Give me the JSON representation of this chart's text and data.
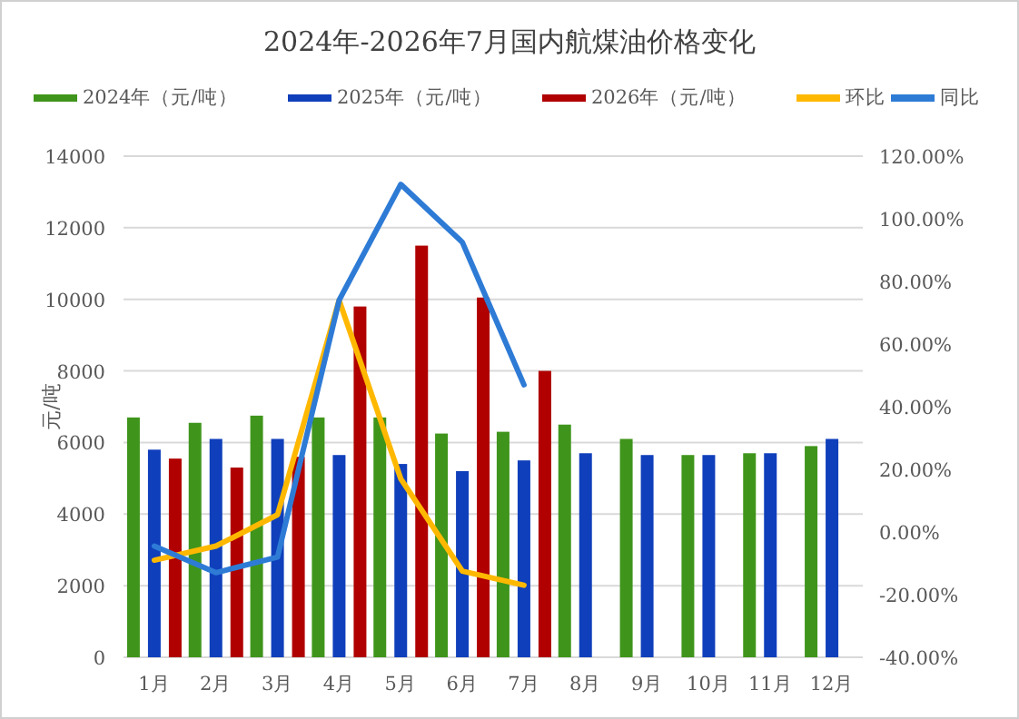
{
  "chart_data": {
    "type": "bar",
    "title": "2024年-2026年7月国内航煤油价格变化",
    "ylabel": "元/吨",
    "categories": [
      "1月",
      "2月",
      "3月",
      "4月",
      "5月",
      "6月",
      "7月",
      "8月",
      "9月",
      "10月",
      "11月",
      "12月"
    ],
    "series": [
      {
        "name": "2024年（元/吨）",
        "color": "#3f951b",
        "values": [
          6700,
          6550,
          6750,
          6700,
          6700,
          6250,
          6300,
          6500,
          6100,
          5650,
          5700,
          5900
        ]
      },
      {
        "name": "2025年（元/吨）",
        "color": "#0f3fbb",
        "values": [
          5800,
          6100,
          6100,
          5650,
          5400,
          5200,
          5500,
          5700,
          5650,
          5650,
          5700,
          6100
        ]
      },
      {
        "name": "2026年（元/吨）",
        "color": "#b00000",
        "values": [
          5550,
          5300,
          5600,
          9800,
          11500,
          10050,
          8000,
          null,
          null,
          null,
          null,
          null
        ]
      },
      {
        "name": "环比",
        "type": "line",
        "axis": "y2",
        "color": "#ffb800",
        "values": [
          -9,
          -4.5,
          5.5,
          74,
          17,
          -12.5,
          -17,
          null,
          null,
          null,
          null,
          null
        ]
      },
      {
        "name": "同比",
        "type": "line",
        "axis": "y2",
        "color": "#2e7bd6",
        "values": [
          -4.5,
          -13,
          -8,
          74,
          111,
          92.5,
          47,
          null,
          null,
          null,
          null,
          null
        ]
      }
    ],
    "ylim": [
      0,
      14000
    ],
    "yticks": [
      0,
      2000,
      4000,
      6000,
      8000,
      10000,
      12000,
      14000
    ],
    "y2lim": [
      -40,
      120
    ],
    "y2ticks": [
      {
        "value": -40,
        "label": "-40.00%"
      },
      {
        "value": -20,
        "label": "-20.00%"
      },
      {
        "value": 0,
        "label": "0.00%"
      },
      {
        "value": 20,
        "label": "20.00%"
      },
      {
        "value": 40,
        "label": "40.00%"
      },
      {
        "value": 60,
        "label": "60.00%"
      },
      {
        "value": 80,
        "label": "80.00%"
      },
      {
        "value": 100,
        "label": "100.00%"
      },
      {
        "value": 120,
        "label": "120.00%"
      }
    ],
    "grid": "y",
    "legend": "top"
  }
}
